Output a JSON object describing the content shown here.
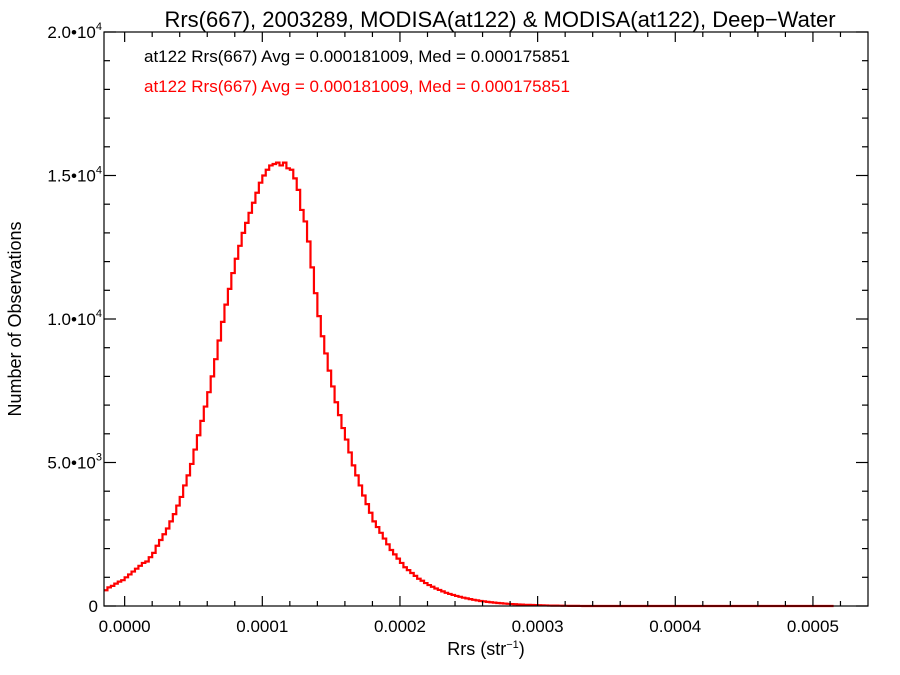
{
  "chart_data": {
    "type": "histogram",
    "title": "Rrs(667), 2003289, MODISA(at122) & MODISA(at122), Deep−Water",
    "xlabel": "Rrs (str",
    "xlabel_sup": "−1",
    "xlabel_close": ")",
    "ylabel": "Number of Observations",
    "xlim": [
      -1.5e-05,
      0.00054
    ],
    "ylim": [
      0,
      20000
    ],
    "x_ticks": [
      {
        "value": 0.0,
        "label": "0.0000"
      },
      {
        "value": 0.0001,
        "label": "0.0001"
      },
      {
        "value": 0.0002,
        "label": "0.0002"
      },
      {
        "value": 0.0003,
        "label": "0.0003"
      },
      {
        "value": 0.0004,
        "label": "0.0004"
      },
      {
        "value": 0.0005,
        "label": "0.0005"
      }
    ],
    "y_ticks": [
      {
        "value": 0,
        "mant": "0",
        "exp": ""
      },
      {
        "value": 5000,
        "mant": "5.0•10",
        "exp": "3"
      },
      {
        "value": 10000,
        "mant": "1.0•10",
        "exp": "4"
      },
      {
        "value": 15000,
        "mant": "1.5•10",
        "exp": "4"
      },
      {
        "value": 20000,
        "mant": "2.0•10",
        "exp": "4"
      }
    ],
    "legend": [
      {
        "text": "at122 Rrs(667) Avg = 0.000181009, Med = 0.000175851",
        "color": "#000000"
      },
      {
        "text": "at122 Rrs(667) Avg = 0.000181009, Med = 0.000175851",
        "color": "#ff0000"
      }
    ],
    "series": [
      {
        "color": "#ff0000",
        "x_start": -1.5e-05,
        "bin_width": 2.5e-06,
        "counts": [
          550,
          650,
          700,
          780,
          850,
          900,
          1000,
          1100,
          1200,
          1300,
          1400,
          1500,
          1550,
          1700,
          1850,
          2100,
          2300,
          2500,
          2700,
          2950,
          3200,
          3500,
          3800,
          4200,
          4550,
          4950,
          5450,
          5950,
          6450,
          6950,
          7450,
          8000,
          8600,
          9250,
          9900,
          10500,
          11050,
          11600,
          12100,
          12550,
          13000,
          13350,
          13700,
          14050,
          14400,
          14750,
          15000,
          15200,
          15350,
          15400,
          15450,
          15350,
          15450,
          15250,
          15200,
          14900,
          14500,
          13800,
          13400,
          12700,
          11800,
          10900,
          10100,
          9400,
          8800,
          8200,
          7650,
          7100,
          6650,
          6200,
          5800,
          5350,
          4900,
          4550,
          4200,
          3850,
          3550,
          3250,
          2950,
          2750,
          2550,
          2350,
          2150,
          1950,
          1800,
          1650,
          1500,
          1350,
          1250,
          1150,
          1050,
          950,
          880,
          800,
          730,
          670,
          610,
          560,
          510,
          460,
          420,
          385,
          350,
          320,
          290,
          265,
          240,
          215,
          195,
          175,
          160,
          145,
          130,
          118,
          105,
          95,
          85,
          76,
          68,
          60,
          54,
          48,
          42,
          38,
          34,
          30,
          26,
          22,
          19,
          16,
          14,
          12,
          10,
          8,
          6,
          5,
          4,
          3,
          2,
          1,
          1,
          1,
          1,
          1,
          0,
          0,
          0,
          0,
          0,
          0,
          0,
          0,
          0,
          0,
          0,
          0,
          0,
          0,
          0,
          0,
          0,
          0,
          0,
          0,
          0,
          0,
          0,
          0,
          0,
          0,
          0,
          0,
          0,
          0,
          0,
          0,
          0,
          0,
          0,
          0,
          0,
          0,
          0,
          0,
          0,
          0,
          0,
          0,
          0,
          0,
          0,
          0,
          0,
          0,
          0,
          0,
          0,
          0,
          0,
          0,
          0,
          0,
          0,
          0,
          0,
          0,
          0,
          0,
          0,
          0,
          0,
          0
        ]
      }
    ]
  }
}
